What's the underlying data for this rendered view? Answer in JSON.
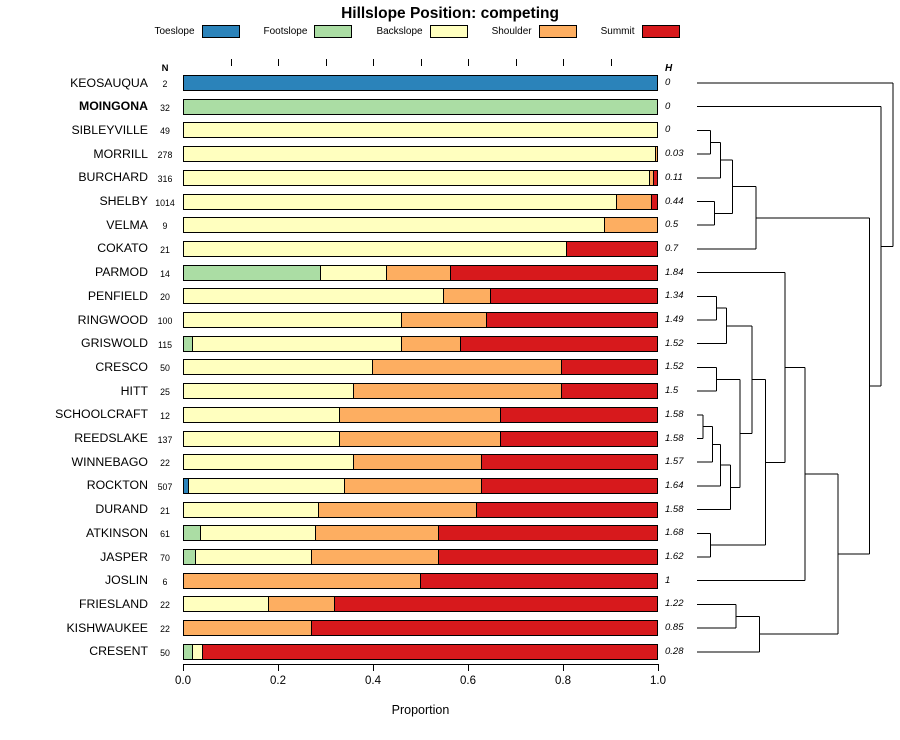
{
  "title": "Hillslope Position: competing",
  "xlabel": "Proportion",
  "columns": {
    "n_header": "N",
    "h_header": "H"
  },
  "x_ticks": [
    "0.0",
    "0.2",
    "0.4",
    "0.6",
    "0.8",
    "1.0"
  ],
  "legend": [
    {
      "label": "Toeslope",
      "color": "#2B83BA"
    },
    {
      "label": "Footslope",
      "color": "#ABDDA4"
    },
    {
      "label": "Backslope",
      "color": "#FFFFBF"
    },
    {
      "label": "Shoulder",
      "color": "#FDAE61"
    },
    {
      "label": "Summit",
      "color": "#D7191C"
    }
  ],
  "chart_data": {
    "type": "bar",
    "stacked": true,
    "orientation": "horizontal",
    "title": "Hillslope Position: competing",
    "xlabel": "Proportion",
    "xlim": [
      0,
      1
    ],
    "grid": false,
    "legend_position": "top",
    "segment_order": [
      "Toeslope",
      "Footslope",
      "Backslope",
      "Shoulder",
      "Summit"
    ],
    "rows": [
      {
        "name": "KEOSAUQUA",
        "n": "2",
        "h": "0",
        "bold": false,
        "p": [
          1,
          0,
          0,
          0,
          0
        ]
      },
      {
        "name": "MOINGONA",
        "n": "32",
        "h": "0",
        "bold": true,
        "p": [
          0,
          1,
          0,
          0,
          0
        ]
      },
      {
        "name": "SIBLEYVILLE",
        "n": "49",
        "h": "0",
        "bold": false,
        "p": [
          0,
          0,
          1,
          0,
          0
        ]
      },
      {
        "name": "MORRILL",
        "n": "278",
        "h": "0.03",
        "bold": false,
        "p": [
          0,
          0,
          0.997,
          0.003,
          0
        ]
      },
      {
        "name": "BURCHARD",
        "n": "316",
        "h": "0.11",
        "bold": false,
        "p": [
          0,
          0,
          0.985,
          0.008,
          0.007
        ]
      },
      {
        "name": "SHELBY",
        "n": "1014",
        "h": "0.44",
        "bold": false,
        "p": [
          0,
          0,
          0.915,
          0.075,
          0.01
        ]
      },
      {
        "name": "VELMA",
        "n": "9",
        "h": "0.5",
        "bold": false,
        "p": [
          0,
          0,
          0.89,
          0.11,
          0
        ]
      },
      {
        "name": "COKATO",
        "n": "21",
        "h": "0.7",
        "bold": false,
        "p": [
          0,
          0,
          0.81,
          0,
          0.19
        ]
      },
      {
        "name": "PARMOD",
        "n": "14",
        "h": "1.84",
        "bold": false,
        "p": [
          0,
          0.29,
          0.14,
          0.135,
          0.435
        ]
      },
      {
        "name": "PENFIELD",
        "n": "20",
        "h": "1.34",
        "bold": false,
        "p": [
          0,
          0,
          0.55,
          0.1,
          0.35
        ]
      },
      {
        "name": "RINGWOOD",
        "n": "100",
        "h": "1.49",
        "bold": false,
        "p": [
          0,
          0,
          0.46,
          0.18,
          0.36
        ]
      },
      {
        "name": "GRISWOLD",
        "n": "115",
        "h": "1.52",
        "bold": false,
        "p": [
          0,
          0.02,
          0.44,
          0.125,
          0.415
        ]
      },
      {
        "name": "CRESCO",
        "n": "50",
        "h": "1.52",
        "bold": false,
        "p": [
          0,
          0,
          0.4,
          0.4,
          0.2
        ]
      },
      {
        "name": "HITT",
        "n": "25",
        "h": "1.5",
        "bold": false,
        "p": [
          0,
          0,
          0.36,
          0.44,
          0.2
        ]
      },
      {
        "name": "SCHOOLCRAFT",
        "n": "12",
        "h": "1.58",
        "bold": false,
        "p": [
          0,
          0,
          0.33,
          0.34,
          0.33
        ]
      },
      {
        "name": "REEDSLAKE",
        "n": "137",
        "h": "1.58",
        "bold": false,
        "p": [
          0,
          0,
          0.33,
          0.34,
          0.33
        ]
      },
      {
        "name": "WINNEBAGO",
        "n": "22",
        "h": "1.57",
        "bold": false,
        "p": [
          0,
          0,
          0.36,
          0.27,
          0.37
        ]
      },
      {
        "name": "ROCKTON",
        "n": "507",
        "h": "1.64",
        "bold": false,
        "p": [
          0.01,
          0,
          0.33,
          0.29,
          0.37
        ]
      },
      {
        "name": "DURAND",
        "n": "21",
        "h": "1.58",
        "bold": false,
        "p": [
          0,
          0,
          0.285,
          0.335,
          0.38
        ]
      },
      {
        "name": "ATKINSON",
        "n": "61",
        "h": "1.68",
        "bold": false,
        "p": [
          0,
          0.035,
          0.245,
          0.26,
          0.46
        ]
      },
      {
        "name": "JASPER",
        "n": "70",
        "h": "1.62",
        "bold": false,
        "p": [
          0,
          0.025,
          0.245,
          0.27,
          0.46
        ]
      },
      {
        "name": "JOSLIN",
        "n": "6",
        "h": "1",
        "bold": false,
        "p": [
          0,
          0,
          0,
          0.5,
          0.5
        ]
      },
      {
        "name": "FRIESLAND",
        "n": "22",
        "h": "1.22",
        "bold": false,
        "p": [
          0,
          0,
          0.18,
          0.14,
          0.68
        ]
      },
      {
        "name": "KISHWAUKEE",
        "n": "22",
        "h": "0.85",
        "bold": false,
        "p": [
          0,
          0,
          0,
          0.27,
          0.73
        ]
      },
      {
        "name": "CRESENT",
        "n": "50",
        "h": "0.28",
        "bold": false,
        "p": [
          0,
          0.02,
          0.02,
          0,
          0.96
        ]
      }
    ],
    "dendrogram": {
      "leaves": 25,
      "merges": [
        {
          "id": "t1",
          "a": 2,
          "b": 3,
          "h": 0.07
        },
        {
          "id": "t2",
          "a": "t1",
          "b": 4,
          "h": 0.12
        },
        {
          "id": "t3",
          "a": 5,
          "b": 6,
          "h": 0.09
        },
        {
          "id": "t4",
          "a": "t2",
          "b": "t3",
          "h": 0.18
        },
        {
          "id": "t5",
          "a": "t4",
          "b": 7,
          "h": 0.3
        },
        {
          "id": "b1",
          "a": 9,
          "b": 10,
          "h": 0.1
        },
        {
          "id": "b2",
          "a": "b1",
          "b": 11,
          "h": 0.15
        },
        {
          "id": "b3",
          "a": 12,
          "b": 13,
          "h": 0.1
        },
        {
          "id": "b4",
          "a": 14,
          "b": 15,
          "h": 0.03
        },
        {
          "id": "b5",
          "a": "b4",
          "b": 16,
          "h": 0.08
        },
        {
          "id": "b6",
          "a": "b5",
          "b": 17,
          "h": 0.12
        },
        {
          "id": "b7",
          "a": "b6",
          "b": 18,
          "h": 0.17
        },
        {
          "id": "b8",
          "a": "b3",
          "b": "b7",
          "h": 0.22
        },
        {
          "id": "b9",
          "a": "b2",
          "b": "b8",
          "h": 0.28
        },
        {
          "id": "b10",
          "a": 19,
          "b": 20,
          "h": 0.07
        },
        {
          "id": "b11",
          "a": "b9",
          "b": "b10",
          "h": 0.35
        },
        {
          "id": "b12",
          "a": 8,
          "b": "b11",
          "h": 0.45
        },
        {
          "id": "b13",
          "a": "b12",
          "b": 21,
          "h": 0.55
        },
        {
          "id": "b14",
          "a": 22,
          "b": 23,
          "h": 0.2
        },
        {
          "id": "b15",
          "a": "b14",
          "b": 24,
          "h": 0.32
        },
        {
          "id": "b16",
          "a": "b13",
          "b": "b15",
          "h": 0.72
        },
        {
          "id": "b17",
          "a": "t5",
          "b": "b16",
          "h": 0.88
        },
        {
          "id": "b18",
          "a": 1,
          "b": "b17",
          "h": 0.94
        },
        {
          "id": "root",
          "a": 0,
          "b": "b18",
          "h": 1.0
        }
      ]
    }
  }
}
